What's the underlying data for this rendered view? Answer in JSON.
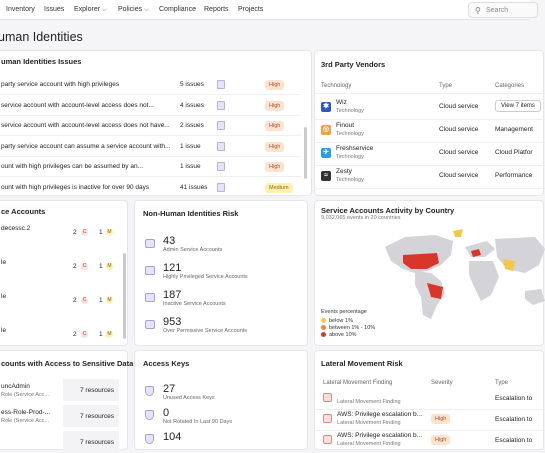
{
  "nav": {
    "items": [
      "Inventory",
      "Issues",
      "Explorer",
      "Policies",
      "Compliance",
      "Reports",
      "Projects"
    ],
    "search_placeholder": "Search"
  },
  "page_title": "uman Identities",
  "identity_issues": {
    "title": "uman Identities Issues",
    "rows": [
      {
        "text": "party service account with high privileges",
        "count": "5 issues",
        "severity": "High"
      },
      {
        "text": "service account with account-level access does not...",
        "count": "4 issues",
        "severity": "High"
      },
      {
        "text": "service account with account-level access does not have...",
        "count": "2 issues",
        "severity": "High"
      },
      {
        "text": "party service account can assume a service account with...",
        "count": "1 issue",
        "severity": "High"
      },
      {
        "text": "ount with high privileges can be assumed by an...",
        "count": "1 issue",
        "severity": "High"
      },
      {
        "text": "ount with high privileges is inactive for over 90 days",
        "count": "41 issues",
        "severity": "Medium"
      }
    ]
  },
  "vendors": {
    "title": "3rd Party Vendors",
    "columns": [
      "Technology",
      "Type",
      "Categories"
    ],
    "rows": [
      {
        "name": "Wiz",
        "sub": "Technology",
        "type": "Cloud service",
        "category": "View 7 items",
        "icon": "wiz-icon",
        "color": "#2b59c3"
      },
      {
        "name": "Finout",
        "sub": "Technology",
        "type": "Cloud service",
        "category": "Management",
        "icon": "finout-icon",
        "color": "#f2a23a"
      },
      {
        "name": "Freshservice",
        "sub": "Technology",
        "type": "Cloud service",
        "category": "Cloud Platfor",
        "icon": "freshservice-icon",
        "color": "#2f9be0"
      },
      {
        "name": "Zesty",
        "sub": "Technology",
        "type": "Cloud service",
        "category": "Performance",
        "icon": "zesty-icon",
        "color": "#333333"
      }
    ]
  },
  "service_accounts": {
    "title": "ce Accounts",
    "rows": [
      {
        "name": "decessc.2",
        "sub": "",
        "c": "2",
        "m": "1"
      },
      {
        "name": "le",
        "sub": "",
        "c": "2",
        "m": "1"
      },
      {
        "name": "le",
        "sub": "",
        "c": "2",
        "m": "1"
      },
      {
        "name": "le",
        "sub": "",
        "c": "2",
        "m": "1"
      }
    ]
  },
  "nhi_risk": {
    "title": "Non-Human Identities Risk",
    "stats": [
      {
        "value": "43",
        "label": "Admin Service Accounts"
      },
      {
        "value": "121",
        "label": "Highly Privileged Service Accounts"
      },
      {
        "value": "187",
        "label": "Inactive Service Accounts"
      },
      {
        "value": "953",
        "label": "Over Permissive Service Accounts"
      }
    ]
  },
  "activity": {
    "title": "Service Accounts Activity by Country",
    "subtitle": "9,032,065 events in 20 countries",
    "legend_title": "Events percentage",
    "legend": [
      {
        "label": "below 1%",
        "color": "#f2c84b"
      },
      {
        "label": "between 1% - 10%",
        "color": "#e8893c"
      },
      {
        "label": "above 10%",
        "color": "#d9362b"
      }
    ]
  },
  "sensitive": {
    "title": "counts with Access to Sensitive Data",
    "rows": [
      {
        "name": "uncAdmin",
        "sub": "Role (Service Acc...",
        "resources": "7 resources"
      },
      {
        "name": "ess-Role-Prod-...",
        "sub": "Role (Service Acc...",
        "resources": "7 resources"
      },
      {
        "name": "",
        "sub": "",
        "resources": "7 resources"
      }
    ]
  },
  "access_keys": {
    "title": "Access Keys",
    "stats": [
      {
        "value": "27",
        "label": "Unused Access Keys"
      },
      {
        "value": "0",
        "label": "Not Rotated In Last 90 Days"
      },
      {
        "value": "104",
        "label": ""
      }
    ]
  },
  "lateral": {
    "title": "Lateral Movement Risk",
    "columns": [
      "Lateral Movement Finding",
      "Severity",
      "Type"
    ],
    "rows": [
      {
        "name": "",
        "sub": "Lateral Movement Finding",
        "severity": "",
        "type": "Escalation to"
      },
      {
        "name": "AWS: Privilege escalation b...",
        "sub": "Lateral Movement Finding",
        "severity": "High",
        "type": "Escalation to"
      },
      {
        "name": "AWS: Privilege escalation b...",
        "sub": "Lateral Movement Finding",
        "severity": "High",
        "type": "Escalation to"
      }
    ]
  }
}
